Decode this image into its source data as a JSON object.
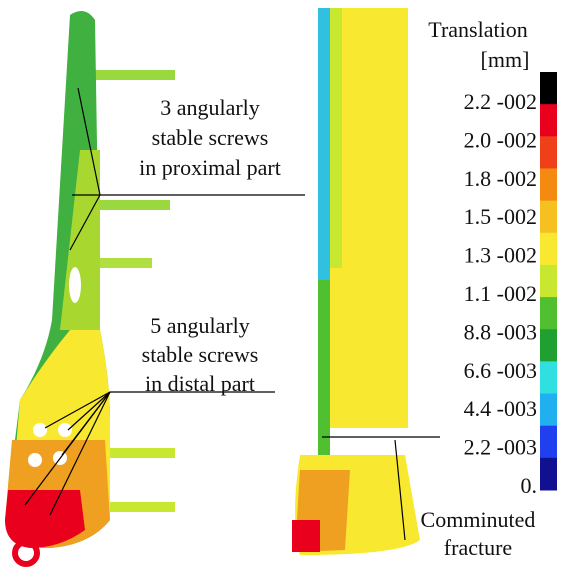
{
  "legend": {
    "title": "Translation",
    "unit": "[mm]",
    "labels": [
      "2.2 -002",
      "2.0 -002",
      "1.8 -002",
      "1.5 -002",
      "1.3 -002",
      "1.1 -002",
      "8.8 -003",
      "6.6 -003",
      "4.4 -003",
      "2.2 -003",
      "0."
    ],
    "colors": [
      "#000000",
      "#e8001c",
      "#f0401a",
      "#f48a10",
      "#f6c020",
      "#f8e830",
      "#c8e830",
      "#50c030",
      "#20a030",
      "#30e0e0",
      "#20b0f0",
      "#2040f0",
      "#101090"
    ]
  },
  "annotations": {
    "proximal": [
      "3 angularly",
      "stable screws",
      "in proximal part"
    ],
    "distal": [
      "5 angularly",
      "stable screws",
      "in distal part"
    ],
    "fracture": [
      "Comminuted",
      "fracture"
    ]
  }
}
